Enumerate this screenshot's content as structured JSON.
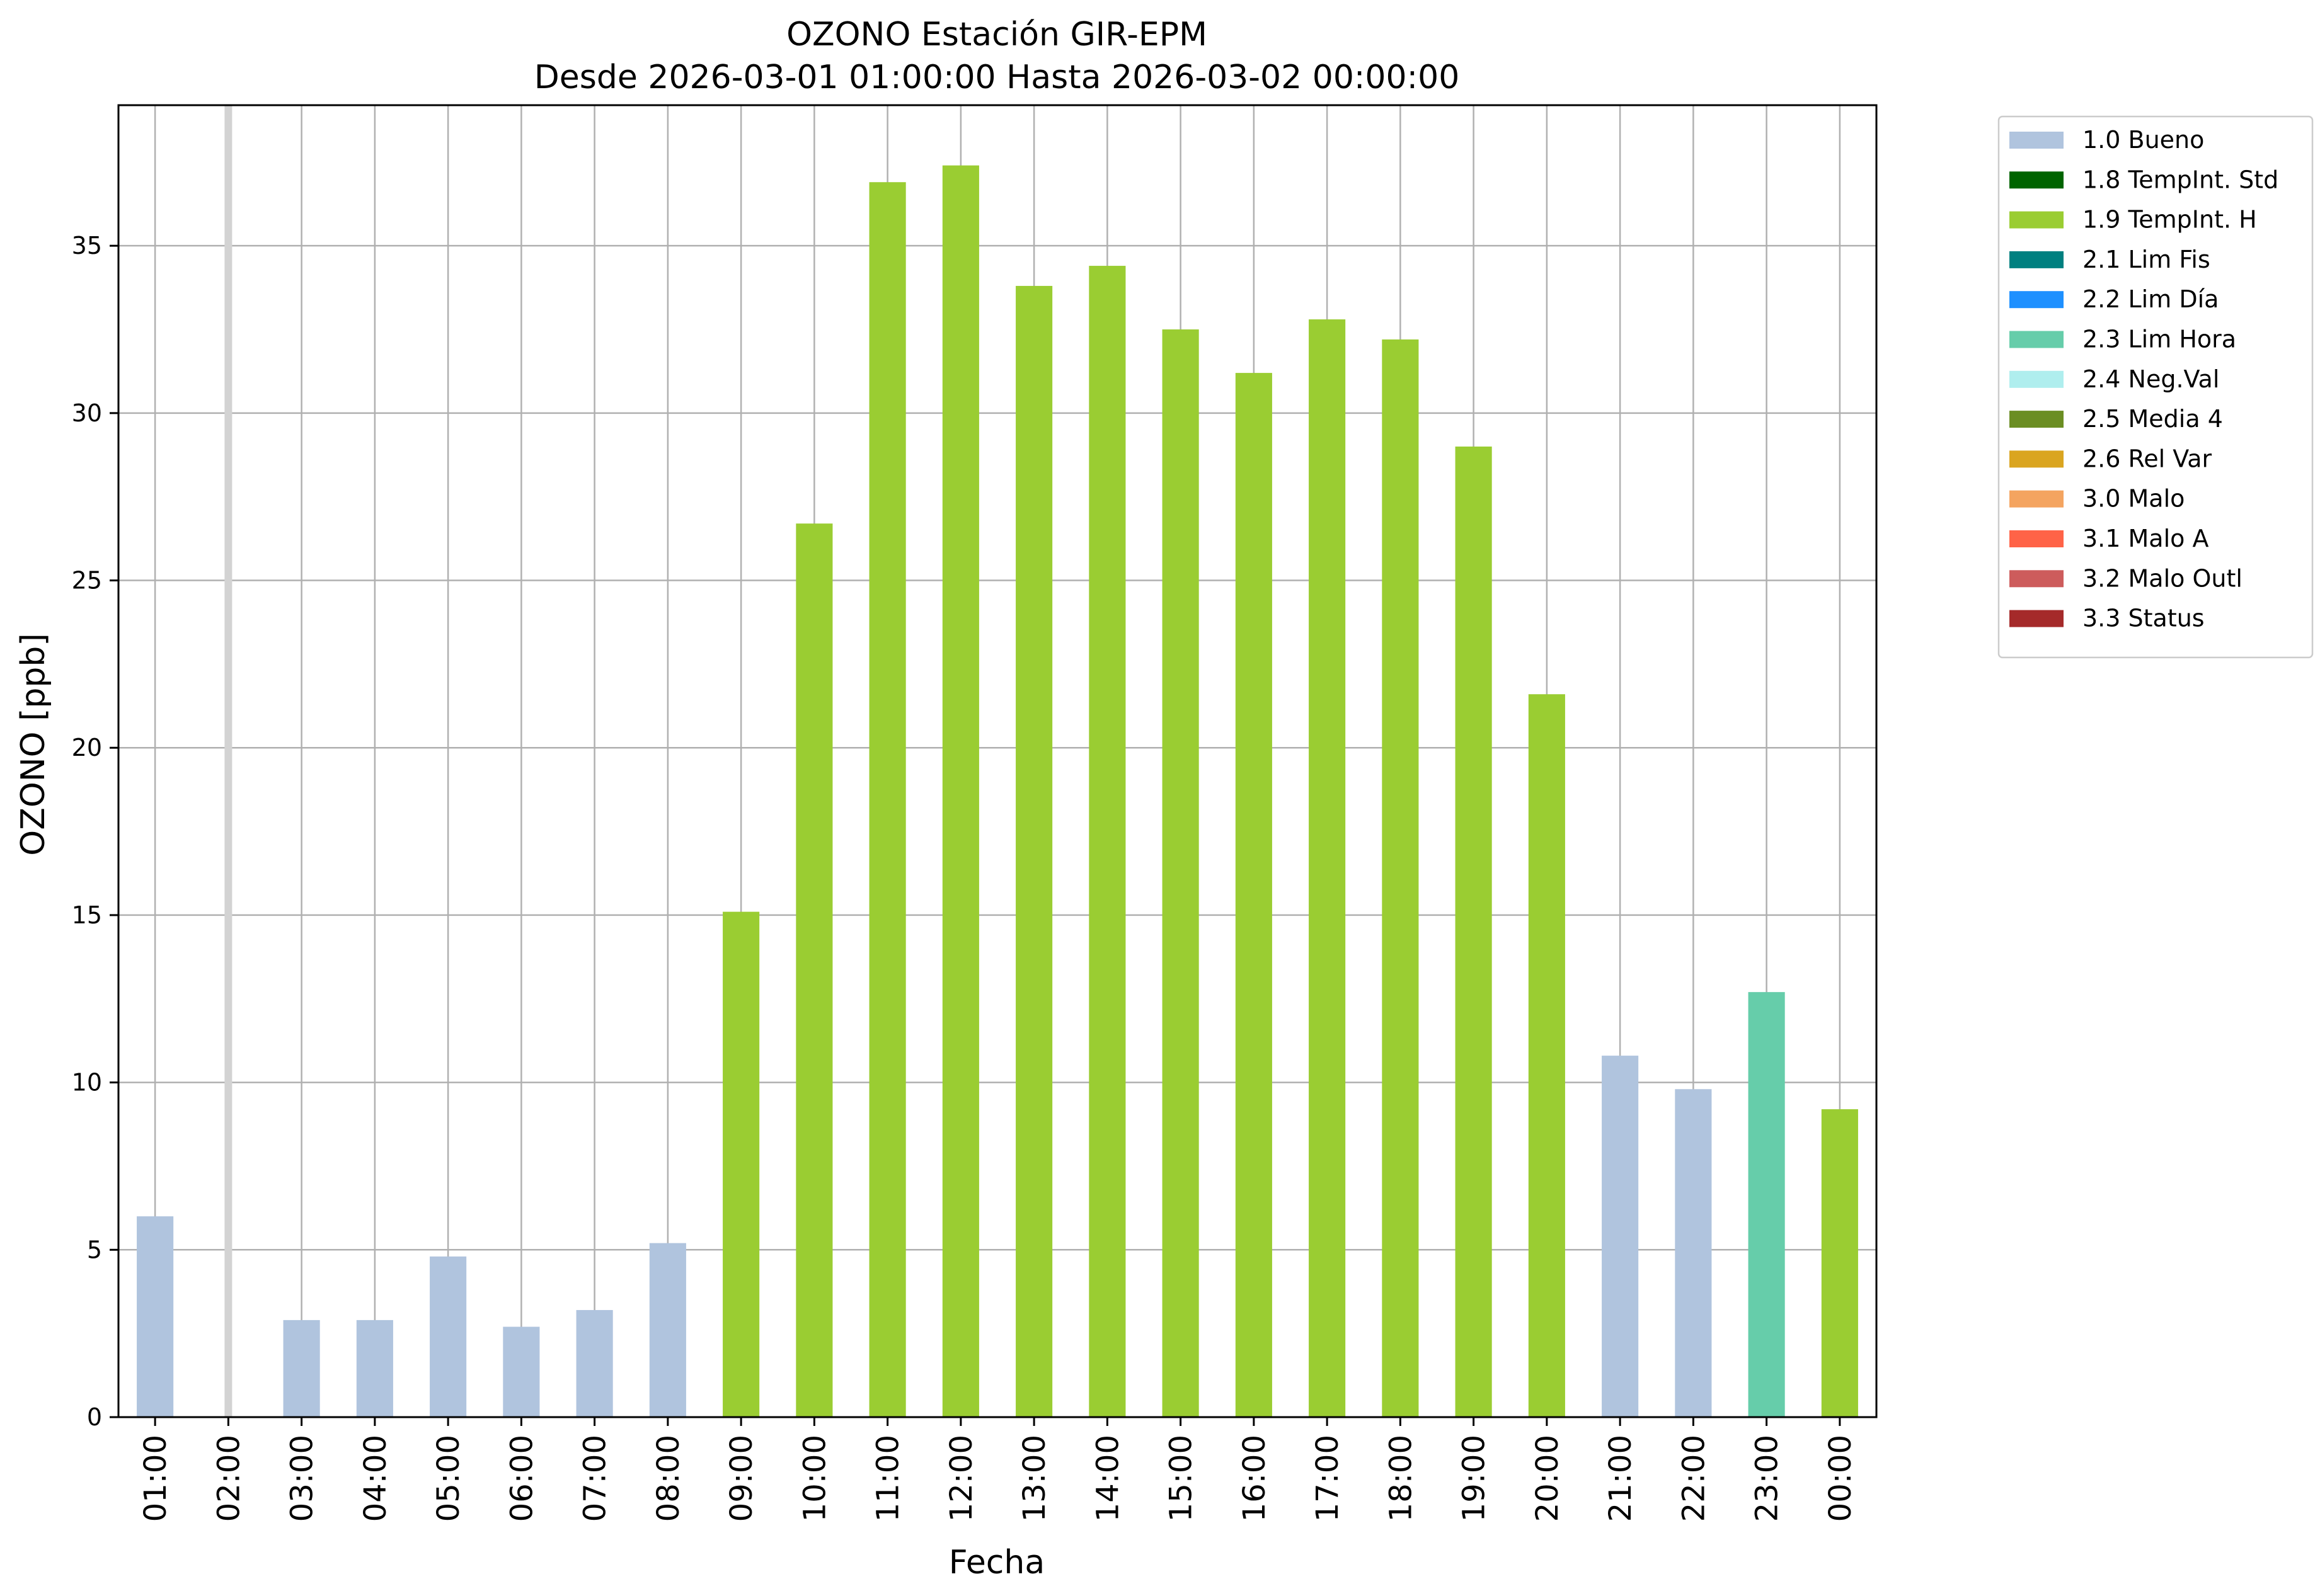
{
  "chart_data": {
    "type": "bar",
    "title": "OZONO Estación GIR-EPM",
    "subtitle": "Desde 2026-03-01 01:00:00 Hasta 2026-03-02 00:00:00",
    "xlabel": "Fecha",
    "ylabel": "OZONO [ppb]",
    "ylim": [
      0,
      39.2
    ],
    "yticks": [
      0,
      5,
      10,
      15,
      20,
      25,
      30,
      35
    ],
    "grid": true,
    "legend_position": "outside-right-top",
    "categories": [
      "01:00",
      "02:00",
      "03:00",
      "04:00",
      "05:00",
      "06:00",
      "07:00",
      "08:00",
      "09:00",
      "10:00",
      "11:00",
      "12:00",
      "13:00",
      "14:00",
      "15:00",
      "16:00",
      "17:00",
      "18:00",
      "19:00",
      "20:00",
      "21:00",
      "22:00",
      "23:00",
      "00:00"
    ],
    "values": [
      6.0,
      null,
      2.9,
      2.9,
      4.8,
      2.7,
      3.2,
      5.2,
      15.1,
      26.7,
      36.9,
      37.4,
      33.8,
      34.4,
      32.5,
      31.2,
      32.8,
      32.2,
      29.0,
      21.6,
      10.8,
      9.8,
      12.7,
      9.2
    ],
    "flags": [
      "1.0 Bueno",
      "",
      "1.0 Bueno",
      "1.0 Bueno",
      "1.0 Bueno",
      "1.0 Bueno",
      "1.0 Bueno",
      "1.0 Bueno",
      "1.9 TempInt. H",
      "1.9 TempInt. H",
      "1.9 TempInt. H",
      "1.9 TempInt. H",
      "1.9 TempInt. H",
      "1.9 TempInt. H",
      "1.9 TempInt. H",
      "1.9 TempInt. H",
      "1.9 TempInt. H",
      "1.9 TempInt. H",
      "1.9 TempInt. H",
      "1.9 TempInt. H",
      "1.0 Bueno",
      "1.0 Bueno",
      "2.3 Lim Hora",
      "1.9 TempInt. H"
    ],
    "missing_marker_color": "#d3d3d3",
    "legend": [
      {
        "label": "1.0 Bueno",
        "color": "#b0c4de"
      },
      {
        "label": "1.8 TempInt. Std",
        "color": "#006400"
      },
      {
        "label": "1.9 TempInt. H",
        "color": "#9acd32"
      },
      {
        "label": "2.1 Lim Fis",
        "color": "#008080"
      },
      {
        "label": "2.2 Lim Día",
        "color": "#1e90ff"
      },
      {
        "label": "2.3 Lim Hora",
        "color": "#66cdaa"
      },
      {
        "label": "2.4 Neg.Val",
        "color": "#afeeee"
      },
      {
        "label": "2.5 Media 4",
        "color": "#6b8e23"
      },
      {
        "label": "2.6 Rel Var",
        "color": "#daa520"
      },
      {
        "label": "3.0 Malo",
        "color": "#f4a460"
      },
      {
        "label": "3.1 Malo A",
        "color": "#ff6347"
      },
      {
        "label": "3.2 Malo Outl",
        "color": "#cd5c5c"
      },
      {
        "label": "3.3 Status",
        "color": "#a52a2a"
      }
    ]
  }
}
